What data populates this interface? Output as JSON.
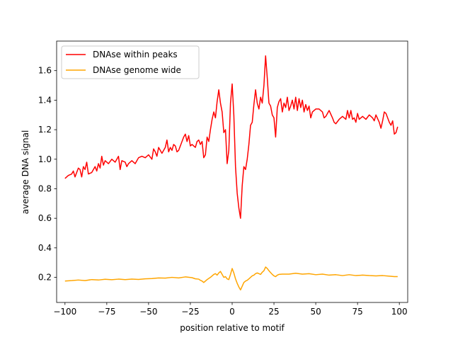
{
  "chart_data": {
    "type": "line",
    "title": "",
    "xlabel": "position relative to motif",
    "ylabel": "average DNA signal",
    "xlim": [
      -105,
      105
    ],
    "ylim": [
      0.03,
      1.8
    ],
    "xticks": [
      -100,
      -75,
      -50,
      -25,
      0,
      25,
      50,
      75,
      100
    ],
    "yticks": [
      0.2,
      0.4,
      0.6,
      0.8,
      1.0,
      1.2,
      1.4,
      1.6
    ],
    "xtick_labels": [
      "−100",
      "−75",
      "−50",
      "−25",
      "0",
      "25",
      "50",
      "75",
      "100"
    ],
    "ytick_labels": [
      "0.2",
      "0.4",
      "0.6",
      "0.8",
      "1.0",
      "1.2",
      "1.4",
      "1.6"
    ],
    "grid": false,
    "legend_position": "upper-left",
    "series": [
      {
        "name": "DNAse within peaks",
        "color": "#ff0000",
        "points": [
          [
            -100,
            0.87
          ],
          [
            -98,
            0.89
          ],
          [
            -96,
            0.9
          ],
          [
            -95,
            0.92
          ],
          [
            -94,
            0.88
          ],
          [
            -92,
            0.94
          ],
          [
            -91,
            0.93
          ],
          [
            -90,
            0.88
          ],
          [
            -89,
            0.95
          ],
          [
            -88,
            0.93
          ],
          [
            -87,
            0.98
          ],
          [
            -86,
            0.9
          ],
          [
            -84,
            0.91
          ],
          [
            -82,
            0.95
          ],
          [
            -81,
            0.92
          ],
          [
            -80,
            0.97
          ],
          [
            -79,
            0.94
          ],
          [
            -78,
            1.02
          ],
          [
            -77,
            0.96
          ],
          [
            -76,
            0.99
          ],
          [
            -74,
            0.97
          ],
          [
            -72,
            1.0
          ],
          [
            -70,
            0.98
          ],
          [
            -68,
            1.02
          ],
          [
            -67,
            0.93
          ],
          [
            -66,
            0.99
          ],
          [
            -64,
            0.98
          ],
          [
            -63,
            0.95
          ],
          [
            -62,
            0.97
          ],
          [
            -60,
            0.99
          ],
          [
            -58,
            0.97
          ],
          [
            -56,
            1.01
          ],
          [
            -54,
            1.02
          ],
          [
            -52,
            1.01
          ],
          [
            -50,
            1.03
          ],
          [
            -48,
            1.0
          ],
          [
            -47,
            1.07
          ],
          [
            -46,
            1.05
          ],
          [
            -45,
            1.02
          ],
          [
            -44,
            1.08
          ],
          [
            -42,
            1.04
          ],
          [
            -40,
            1.08
          ],
          [
            -39,
            1.13
          ],
          [
            -38,
            1.05
          ],
          [
            -37,
            1.08
          ],
          [
            -36,
            1.06
          ],
          [
            -35,
            1.1
          ],
          [
            -34,
            1.09
          ],
          [
            -33,
            1.05
          ],
          [
            -32,
            1.06
          ],
          [
            -30,
            1.12
          ],
          [
            -29,
            1.15
          ],
          [
            -28,
            1.17
          ],
          [
            -27,
            1.12
          ],
          [
            -26,
            1.16
          ],
          [
            -25,
            1.09
          ],
          [
            -24,
            1.1
          ],
          [
            -23,
            1.09
          ],
          [
            -22,
            1.08
          ],
          [
            -21,
            1.12
          ],
          [
            -20,
            1.13
          ],
          [
            -19,
            1.1
          ],
          [
            -18,
            1.12
          ],
          [
            -17,
            1.01
          ],
          [
            -16,
            1.03
          ],
          [
            -15,
            1.15
          ],
          [
            -14,
            1.12
          ],
          [
            -13,
            1.2
          ],
          [
            -12,
            1.27
          ],
          [
            -11,
            1.32
          ],
          [
            -10,
            1.28
          ],
          [
            -9,
            1.39
          ],
          [
            -8,
            1.47
          ],
          [
            -7,
            1.38
          ],
          [
            -6,
            1.32
          ],
          [
            -5,
            1.18
          ],
          [
            -4,
            1.2
          ],
          [
            -3,
            0.97
          ],
          [
            -2,
            1.06
          ],
          [
            -1,
            1.38
          ],
          [
            0,
            1.51
          ],
          [
            1,
            1.3
          ],
          [
            2,
            0.95
          ],
          [
            3,
            0.77
          ],
          [
            4,
            0.67
          ],
          [
            5,
            0.6
          ],
          [
            6,
            0.82
          ],
          [
            7,
            0.95
          ],
          [
            8,
            0.93
          ],
          [
            9,
            1.0
          ],
          [
            10,
            1.1
          ],
          [
            11,
            1.23
          ],
          [
            12,
            1.25
          ],
          [
            13,
            1.37
          ],
          [
            14,
            1.47
          ],
          [
            15,
            1.38
          ],
          [
            16,
            1.34
          ],
          [
            17,
            1.42
          ],
          [
            18,
            1.38
          ],
          [
            19,
            1.5
          ],
          [
            20,
            1.7
          ],
          [
            21,
            1.55
          ],
          [
            22,
            1.38
          ],
          [
            23,
            1.36
          ],
          [
            24,
            1.3
          ],
          [
            25,
            1.28
          ],
          [
            26,
            1.15
          ],
          [
            27,
            1.35
          ],
          [
            28,
            1.39
          ],
          [
            29,
            1.41
          ],
          [
            30,
            1.32
          ],
          [
            31,
            1.38
          ],
          [
            32,
            1.35
          ],
          [
            33,
            1.42
          ],
          [
            34,
            1.33
          ],
          [
            35,
            1.36
          ],
          [
            36,
            1.4
          ],
          [
            37,
            1.34
          ],
          [
            38,
            1.42
          ],
          [
            39,
            1.33
          ],
          [
            40,
            1.41
          ],
          [
            41,
            1.35
          ],
          [
            42,
            1.4
          ],
          [
            43,
            1.32
          ],
          [
            44,
            1.37
          ],
          [
            45,
            1.33
          ],
          [
            46,
            1.36
          ],
          [
            47,
            1.28
          ],
          [
            48,
            1.32
          ],
          [
            50,
            1.34
          ],
          [
            52,
            1.34
          ],
          [
            54,
            1.32
          ],
          [
            55,
            1.28
          ],
          [
            56,
            1.29
          ],
          [
            58,
            1.33
          ],
          [
            60,
            1.28
          ],
          [
            61,
            1.25
          ],
          [
            62,
            1.24
          ],
          [
            64,
            1.27
          ],
          [
            66,
            1.29
          ],
          [
            68,
            1.27
          ],
          [
            69,
            1.33
          ],
          [
            70,
            1.28
          ],
          [
            71,
            1.33
          ],
          [
            72,
            1.27
          ],
          [
            73,
            1.28
          ],
          [
            74,
            1.25
          ],
          [
            75,
            1.31
          ],
          [
            76,
            1.27
          ],
          [
            78,
            1.29
          ],
          [
            80,
            1.27
          ],
          [
            82,
            1.3
          ],
          [
            84,
            1.28
          ],
          [
            85,
            1.26
          ],
          [
            86,
            1.3
          ],
          [
            88,
            1.25
          ],
          [
            89,
            1.21
          ],
          [
            90,
            1.26
          ],
          [
            91,
            1.32
          ],
          [
            92,
            1.31
          ],
          [
            94,
            1.25
          ],
          [
            95,
            1.23
          ],
          [
            96,
            1.26
          ],
          [
            97,
            1.17
          ],
          [
            98,
            1.18
          ],
          [
            99,
            1.22
          ]
        ]
      },
      {
        "name": "DNAse genome wide",
        "color": "#ffa500",
        "points": [
          [
            -100,
            0.175
          ],
          [
            -96,
            0.178
          ],
          [
            -92,
            0.182
          ],
          [
            -88,
            0.178
          ],
          [
            -84,
            0.185
          ],
          [
            -80,
            0.182
          ],
          [
            -76,
            0.187
          ],
          [
            -72,
            0.184
          ],
          [
            -68,
            0.188
          ],
          [
            -64,
            0.185
          ],
          [
            -60,
            0.188
          ],
          [
            -56,
            0.186
          ],
          [
            -52,
            0.19
          ],
          [
            -48,
            0.192
          ],
          [
            -44,
            0.196
          ],
          [
            -40,
            0.195
          ],
          [
            -36,
            0.2
          ],
          [
            -32,
            0.196
          ],
          [
            -28,
            0.203
          ],
          [
            -24,
            0.198
          ],
          [
            -22,
            0.19
          ],
          [
            -20,
            0.188
          ],
          [
            -19,
            0.18
          ],
          [
            -18,
            0.175
          ],
          [
            -17,
            0.165
          ],
          [
            -16,
            0.175
          ],
          [
            -15,
            0.185
          ],
          [
            -13,
            0.2
          ],
          [
            -11,
            0.22
          ],
          [
            -10,
            0.225
          ],
          [
            -9,
            0.215
          ],
          [
            -8,
            0.23
          ],
          [
            -7,
            0.24
          ],
          [
            -6,
            0.22
          ],
          [
            -5,
            0.2
          ],
          [
            -4,
            0.205
          ],
          [
            -3,
            0.19
          ],
          [
            -2,
            0.185
          ],
          [
            -1,
            0.22
          ],
          [
            0,
            0.26
          ],
          [
            1,
            0.23
          ],
          [
            2,
            0.19
          ],
          [
            3,
            0.16
          ],
          [
            4,
            0.135
          ],
          [
            5,
            0.115
          ],
          [
            6,
            0.14
          ],
          [
            7,
            0.165
          ],
          [
            8,
            0.175
          ],
          [
            9,
            0.18
          ],
          [
            10,
            0.19
          ],
          [
            11,
            0.2
          ],
          [
            12,
            0.21
          ],
          [
            13,
            0.215
          ],
          [
            14,
            0.225
          ],
          [
            15,
            0.23
          ],
          [
            16,
            0.225
          ],
          [
            17,
            0.22
          ],
          [
            18,
            0.235
          ],
          [
            19,
            0.245
          ],
          [
            20,
            0.27
          ],
          [
            21,
            0.26
          ],
          [
            22,
            0.245
          ],
          [
            23,
            0.232
          ],
          [
            24,
            0.22
          ],
          [
            25,
            0.21
          ],
          [
            26,
            0.205
          ],
          [
            27,
            0.215
          ],
          [
            28,
            0.22
          ],
          [
            30,
            0.222
          ],
          [
            34,
            0.222
          ],
          [
            38,
            0.228
          ],
          [
            42,
            0.222
          ],
          [
            46,
            0.225
          ],
          [
            50,
            0.218
          ],
          [
            54,
            0.222
          ],
          [
            58,
            0.215
          ],
          [
            62,
            0.218
          ],
          [
            66,
            0.212
          ],
          [
            70,
            0.218
          ],
          [
            74,
            0.212
          ],
          [
            78,
            0.215
          ],
          [
            82,
            0.212
          ],
          [
            86,
            0.21
          ],
          [
            90,
            0.212
          ],
          [
            94,
            0.208
          ],
          [
            97,
            0.205
          ],
          [
            99,
            0.205
          ]
        ]
      }
    ]
  }
}
